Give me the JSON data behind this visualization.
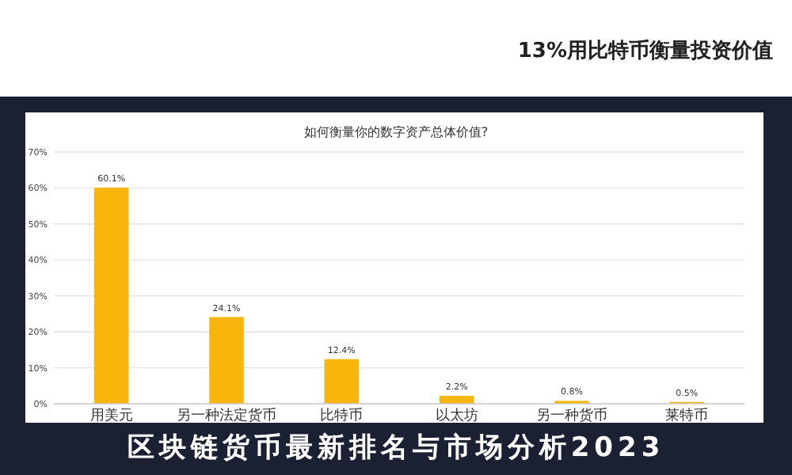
{
  "chart_data": {
    "type": "bar",
    "title": "如何衡量你的数字资产总体价值?",
    "annotations": [
      "13%用比特币衡量投资价值",
      "区块链货币最新排名与市场分析2023"
    ],
    "categories": [
      "用美元",
      "另一种法定货币",
      "比特币",
      "以太坊",
      "另一种货币",
      "莱特币"
    ],
    "values": [
      60.1,
      24.1,
      12.4,
      2.2,
      0.8,
      0.5
    ],
    "value_labels": [
      "60.1%",
      "24.1%",
      "12.4%",
      "2.2%",
      "0.8%",
      "0.5%"
    ],
    "color": "#f8b60c",
    "ylim": [
      0,
      70
    ],
    "yticks": [
      {
        "value": 0,
        "label": "0%"
      },
      {
        "value": 10,
        "label": "10%"
      },
      {
        "value": 20,
        "label": "20%"
      },
      {
        "value": 30,
        "label": "30%"
      },
      {
        "value": 40,
        "label": "40%"
      },
      {
        "value": 50,
        "label": "50%"
      },
      {
        "value": 60,
        "label": "60%"
      },
      {
        "value": 70,
        "label": "70%"
      }
    ],
    "grid": "y"
  }
}
